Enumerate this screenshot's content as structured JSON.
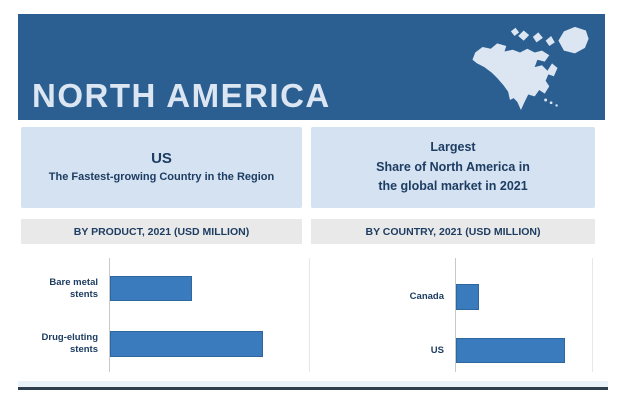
{
  "header": {
    "title": "NORTH AMERICA",
    "bg_color": "#2b5f91",
    "title_color": "#dce6f2",
    "map_icon": "north-america-map"
  },
  "highlights": {
    "us_box": {
      "title": "US",
      "subtitle": "The Fastest-growing Country in the Region"
    },
    "share_box": {
      "line1": "Largest",
      "line2": "Share of North America in",
      "line3": "the global market in 2021"
    }
  },
  "chart_data": [
    {
      "type": "bar",
      "orientation": "horizontal",
      "title": "BY PRODUCT, 2021 (USD MILLION)",
      "categories": [
        "Bare metal stents",
        "Drug-eluting stents"
      ],
      "values": [
        41,
        77
      ],
      "xlim": [
        0,
        100
      ],
      "axis_tick_labels": false,
      "grid": "right-edge-line-only",
      "legend": "none",
      "bar_color": "#3a7bbe"
    },
    {
      "type": "bar",
      "orientation": "horizontal",
      "title": "BY COUNTRY, 2021 (USD MILLION)",
      "categories": [
        "Canada",
        "US"
      ],
      "values": [
        17,
        80
      ],
      "xlim": [
        0,
        100
      ],
      "axis_tick_labels": false,
      "grid": "right-edge-line-only",
      "legend": "none",
      "bar_color": "#3a7bbe"
    }
  ],
  "colors": {
    "header_bg": "#2b5f91",
    "highlight_box_bg": "#d4e2f1",
    "section_strip_bg": "#e9e9e9",
    "bar_fill": "#3a7bbe",
    "text_navy": "#1e3d62",
    "footer_line": "#2f3e4d"
  }
}
